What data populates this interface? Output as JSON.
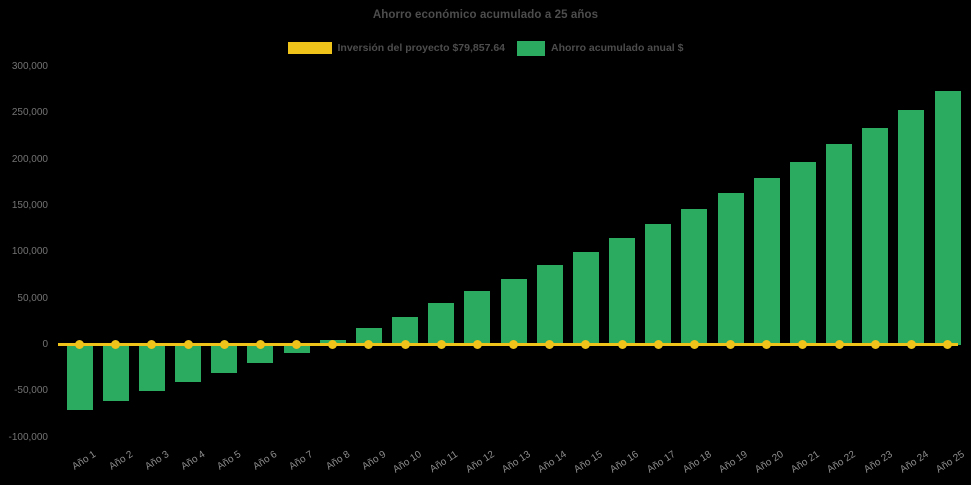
{
  "legend": {
    "items": [
      {
        "label": "Inversión del proyecto $79,857.64",
        "color": "#EFC319",
        "swatch": "line"
      },
      {
        "label": "Ahorro acumulado anual $",
        "color": "#2BAB60",
        "swatch": "bar"
      }
    ]
  },
  "colors": {
    "background": "#000000",
    "title_text": "#4D4D4D",
    "y_axis_text": "#737373",
    "x_axis_text": "#8C8C8C",
    "investment_line": "#EFC319",
    "savings_bar": "#2BAB60"
  },
  "chart_data": {
    "type": "bar",
    "title": "Ahorro económico acumulado a 25 años",
    "xlabel": "",
    "ylabel": "",
    "ylim": [
      -100000,
      300000
    ],
    "ytick_step": 50000,
    "grid": false,
    "legend_position": "top",
    "categories": [
      "Año 1",
      "Año 2",
      "Año 3",
      "Año 4",
      "Año 5",
      "Año 6",
      "Año 7",
      "Año 8",
      "Año 9",
      "Año 10",
      "Año 11",
      "Año 12",
      "Año 13",
      "Año 14",
      "Año 15",
      "Año 16",
      "Año 17",
      "Año 18",
      "Año 19",
      "Año 20",
      "Año 21",
      "Año 22",
      "Año 23",
      "Año 24",
      "Año 25"
    ],
    "series": [
      {
        "name": "Inversión del proyecto $79,857.64",
        "type": "line",
        "color": "#EFC319",
        "values": [
          0,
          0,
          0,
          0,
          0,
          0,
          0,
          0,
          0,
          0,
          0,
          0,
          0,
          0,
          0,
          0,
          0,
          0,
          0,
          0,
          0,
          0,
          0,
          0,
          0
        ]
      },
      {
        "name": "Ahorro acumulado anual $",
        "type": "bar",
        "color": "#2BAB60",
        "values": [
          -70000,
          -60000,
          -49000,
          -40000,
          -30000,
          -19000,
          -9000,
          6000,
          18000,
          30000,
          45000,
          58000,
          71000,
          86000,
          100000,
          116000,
          131000,
          147000,
          164000,
          180000,
          198000,
          217000,
          234000,
          254000,
          274000
        ]
      }
    ]
  }
}
